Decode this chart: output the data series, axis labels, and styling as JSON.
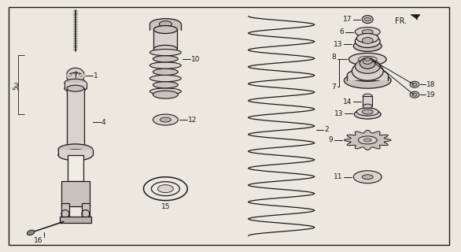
{
  "bg_color": "#ebe8e0",
  "lc": "#1a1a1a",
  "fc_light": "#d8d3cc",
  "fc_mid": "#c8c3bc",
  "fc_dark": "#b8b3ac",
  "fig_w": 5.86,
  "fig_h": 3.2,
  "dpi": 100,
  "labels": {
    "1": [
      148,
      218,
      "right"
    ],
    "2": [
      390,
      155,
      "right"
    ],
    "4": [
      148,
      157,
      "right"
    ],
    "6": [
      435,
      272,
      "right"
    ],
    "7": [
      435,
      196,
      "right"
    ],
    "8": [
      435,
      211,
      "right"
    ],
    "9": [
      435,
      134,
      "right"
    ],
    "10": [
      255,
      210,
      "right"
    ],
    "11": [
      435,
      88,
      "right"
    ],
    "12": [
      255,
      143,
      "right"
    ],
    "13a": [
      435,
      240,
      "right"
    ],
    "13b": [
      435,
      161,
      "right"
    ],
    "14": [
      435,
      177,
      "right"
    ],
    "15": [
      255,
      68,
      "center"
    ],
    "16": [
      55,
      25,
      "left"
    ],
    "17": [
      435,
      289,
      "right"
    ],
    "18": [
      545,
      210,
      "left"
    ],
    "19": [
      545,
      197,
      "left"
    ]
  }
}
